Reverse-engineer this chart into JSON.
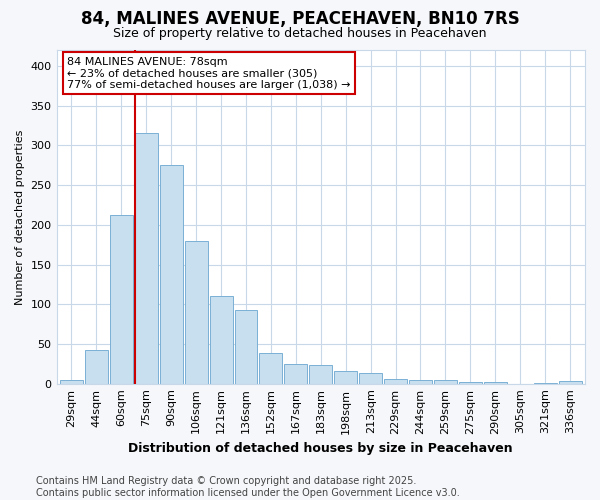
{
  "title": "84, MALINES AVENUE, PEACEHAVEN, BN10 7RS",
  "subtitle": "Size of property relative to detached houses in Peacehaven",
  "xlabel": "Distribution of detached houses by size in Peacehaven",
  "ylabel": "Number of detached properties",
  "categories": [
    "29sqm",
    "44sqm",
    "60sqm",
    "75sqm",
    "90sqm",
    "106sqm",
    "121sqm",
    "136sqm",
    "152sqm",
    "167sqm",
    "183sqm",
    "198sqm",
    "213sqm",
    "229sqm",
    "244sqm",
    "259sqm",
    "275sqm",
    "290sqm",
    "305sqm",
    "321sqm",
    "336sqm"
  ],
  "values": [
    5,
    43,
    212,
    315,
    275,
    180,
    110,
    93,
    38,
    25,
    24,
    16,
    13,
    6,
    5,
    5,
    2,
    2,
    0,
    1,
    3
  ],
  "bar_color": "#c8dff0",
  "bar_edgecolor": "#7ab0d4",
  "vline_x": 3,
  "vline_color": "#cc0000",
  "annotation_text": "84 MALINES AVENUE: 78sqm\n← 23% of detached houses are smaller (305)\n77% of semi-detached houses are larger (1,038) →",
  "annotation_box_color": "white",
  "annotation_box_edgecolor": "#cc0000",
  "ylim": [
    0,
    420
  ],
  "yticks": [
    0,
    50,
    100,
    150,
    200,
    250,
    300,
    350,
    400
  ],
  "grid_color": "#c8d8e8",
  "footer": "Contains HM Land Registry data © Crown copyright and database right 2025.\nContains public sector information licensed under the Open Government Licence v3.0.",
  "background_color": "#f5f7fa",
  "plot_bg_color": "white",
  "title_fontsize": 12,
  "subtitle_fontsize": 9,
  "ylabel_fontsize": 8,
  "xlabel_fontsize": 9,
  "tick_fontsize": 8,
  "annotation_fontsize": 8,
  "footer_fontsize": 7
}
